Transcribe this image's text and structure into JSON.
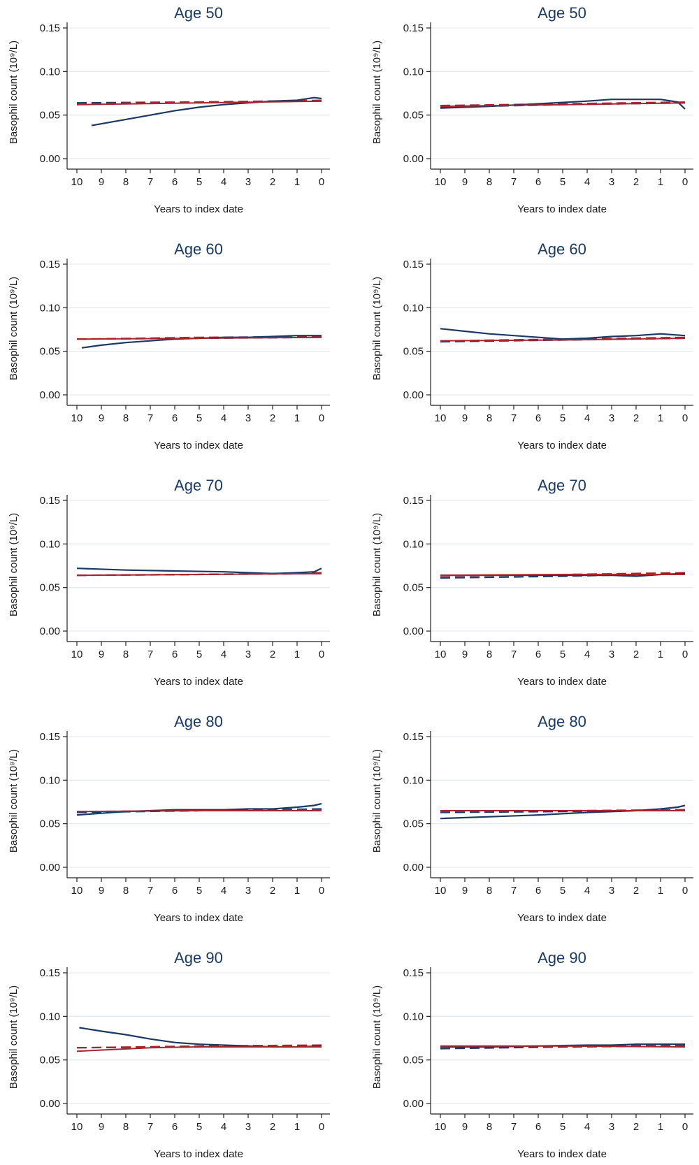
{
  "colors": {
    "navy": "#1a3a63",
    "red": "#a8242f",
    "grid": "#e6eaef",
    "axis": "#222222",
    "text": "#1a1a1a"
  },
  "chart_data": [
    {
      "type": "line",
      "title": "Age 50",
      "xlabel": "Years to index date",
      "ylabel": "Basophil count (10⁹/L)",
      "xlim": [
        10,
        0
      ],
      "ylim": [
        0,
        0.15
      ],
      "x_ticks": [
        10,
        9,
        8,
        7,
        6,
        5,
        4,
        3,
        2,
        1,
        0
      ],
      "y_ticks": [
        "0.00",
        "0.05",
        "0.10",
        "0.15"
      ],
      "grid": true,
      "series": [
        {
          "style": "navy-solid",
          "x": [
            9.4,
            8,
            7,
            6,
            5,
            4,
            3,
            2,
            1,
            0.3,
            0
          ],
          "y": [
            0.038,
            0.045,
            0.05,
            0.055,
            0.059,
            0.062,
            0.064,
            0.066,
            0.067,
            0.07,
            0.069
          ]
        },
        {
          "style": "navy-dashed",
          "x": [
            10,
            5,
            0
          ],
          "y": [
            0.064,
            0.065,
            0.066
          ]
        },
        {
          "style": "red-solid",
          "x": [
            10,
            5,
            0
          ],
          "y": [
            0.062,
            0.064,
            0.066
          ]
        },
        {
          "style": "red-dashed",
          "x": [
            10,
            5,
            0
          ],
          "y": [
            0.063,
            0.065,
            0.067
          ]
        }
      ]
    },
    {
      "type": "line",
      "title": "Age 50",
      "xlabel": "Years to index date",
      "ylabel": "Basophil count (10⁹/L)",
      "xlim": [
        10,
        0
      ],
      "ylim": [
        0,
        0.15
      ],
      "x_ticks": [
        10,
        9,
        8,
        7,
        6,
        5,
        4,
        3,
        2,
        1,
        0
      ],
      "y_ticks": [
        "0.00",
        "0.05",
        "0.10",
        "0.15"
      ],
      "grid": true,
      "series": [
        {
          "style": "navy-solid",
          "x": [
            10,
            8,
            6,
            4,
            3,
            2,
            1,
            0.3,
            0
          ],
          "y": [
            0.058,
            0.06,
            0.063,
            0.066,
            0.068,
            0.068,
            0.068,
            0.065,
            0.057
          ]
        },
        {
          "style": "navy-dashed",
          "x": [
            10,
            5,
            0
          ],
          "y": [
            0.059,
            0.062,
            0.064
          ]
        },
        {
          "style": "red-solid",
          "x": [
            10,
            5,
            0
          ],
          "y": [
            0.06,
            0.062,
            0.064
          ]
        },
        {
          "style": "red-dashed",
          "x": [
            10,
            5,
            0
          ],
          "y": [
            0.061,
            0.063,
            0.065
          ]
        }
      ]
    },
    {
      "type": "line",
      "title": "Age 60",
      "xlabel": "Years to index date",
      "ylabel": "Basophil count (10⁹/L)",
      "xlim": [
        10,
        0
      ],
      "ylim": [
        0,
        0.15
      ],
      "x_ticks": [
        10,
        9,
        8,
        7,
        6,
        5,
        4,
        3,
        2,
        1,
        0
      ],
      "y_ticks": [
        "0.00",
        "0.05",
        "0.10",
        "0.15"
      ],
      "grid": true,
      "series": [
        {
          "style": "navy-solid",
          "x": [
            9.8,
            9,
            8,
            7,
            6,
            5,
            4,
            3,
            2,
            1,
            0
          ],
          "y": [
            0.054,
            0.057,
            0.06,
            0.062,
            0.064,
            0.065,
            0.066,
            0.066,
            0.067,
            0.068,
            0.068
          ]
        },
        {
          "style": "navy-dashed",
          "x": [
            10,
            5,
            0
          ],
          "y": [
            0.064,
            0.065,
            0.066
          ]
        },
        {
          "style": "red-solid",
          "x": [
            10,
            5,
            0
          ],
          "y": [
            0.064,
            0.065,
            0.066
          ]
        },
        {
          "style": "red-dashed",
          "x": [
            10,
            5,
            0
          ],
          "y": [
            0.064,
            0.066,
            0.067
          ]
        }
      ]
    },
    {
      "type": "line",
      "title": "Age 60",
      "xlabel": "Years to index date",
      "ylabel": "Basophil count (10⁹/L)",
      "xlim": [
        10,
        0
      ],
      "ylim": [
        0,
        0.15
      ],
      "x_ticks": [
        10,
        9,
        8,
        7,
        6,
        5,
        4,
        3,
        2,
        1,
        0
      ],
      "y_ticks": [
        "0.00",
        "0.05",
        "0.10",
        "0.15"
      ],
      "grid": true,
      "series": [
        {
          "style": "navy-solid",
          "x": [
            10,
            9,
            8,
            7,
            6,
            5,
            4,
            3,
            2,
            1,
            0
          ],
          "y": [
            0.076,
            0.073,
            0.07,
            0.068,
            0.066,
            0.064,
            0.065,
            0.067,
            0.068,
            0.07,
            0.068
          ]
        },
        {
          "style": "navy-dashed",
          "x": [
            10,
            5,
            0
          ],
          "y": [
            0.061,
            0.063,
            0.065
          ]
        },
        {
          "style": "red-solid",
          "x": [
            10,
            5,
            0
          ],
          "y": [
            0.062,
            0.063,
            0.065
          ]
        },
        {
          "style": "red-dashed",
          "x": [
            10,
            5,
            0
          ],
          "y": [
            0.062,
            0.064,
            0.066
          ]
        }
      ]
    },
    {
      "type": "line",
      "title": "Age 70",
      "xlabel": "Years to index date",
      "ylabel": "Basophil count (10⁹/L)",
      "xlim": [
        10,
        0
      ],
      "ylim": [
        0,
        0.15
      ],
      "x_ticks": [
        10,
        9,
        8,
        7,
        6,
        5,
        4,
        3,
        2,
        1,
        0
      ],
      "y_ticks": [
        "0.00",
        "0.05",
        "0.10",
        "0.15"
      ],
      "grid": true,
      "series": [
        {
          "style": "navy-solid",
          "x": [
            10,
            8,
            6,
            4,
            3,
            2,
            1,
            0.3,
            0
          ],
          "y": [
            0.072,
            0.07,
            0.069,
            0.068,
            0.067,
            0.066,
            0.067,
            0.068,
            0.072
          ]
        },
        {
          "style": "navy-dashed",
          "x": [
            10,
            5,
            0
          ],
          "y": [
            0.064,
            0.065,
            0.066
          ]
        },
        {
          "style": "red-solid",
          "x": [
            10,
            5,
            0
          ],
          "y": [
            0.064,
            0.065,
            0.066
          ]
        },
        {
          "style": "red-dashed",
          "x": [
            10,
            5,
            0
          ],
          "y": [
            0.064,
            0.065,
            0.067
          ]
        }
      ]
    },
    {
      "type": "line",
      "title": "Age 70",
      "xlabel": "Years to index date",
      "ylabel": "Basophil count (10⁹/L)",
      "xlim": [
        10,
        0
      ],
      "ylim": [
        0,
        0.15
      ],
      "x_ticks": [
        10,
        9,
        8,
        7,
        6,
        5,
        4,
        3,
        2,
        1,
        0
      ],
      "y_ticks": [
        "0.00",
        "0.05",
        "0.10",
        "0.15"
      ],
      "grid": true,
      "series": [
        {
          "style": "navy-solid",
          "x": [
            10,
            8,
            6,
            4,
            3,
            2,
            1,
            0
          ],
          "y": [
            0.064,
            0.064,
            0.064,
            0.064,
            0.064,
            0.063,
            0.065,
            0.066
          ]
        },
        {
          "style": "navy-dashed",
          "x": [
            10,
            5,
            0
          ],
          "y": [
            0.061,
            0.063,
            0.066
          ]
        },
        {
          "style": "red-solid",
          "x": [
            10,
            5,
            0
          ],
          "y": [
            0.064,
            0.065,
            0.065
          ]
        },
        {
          "style": "red-dashed",
          "x": [
            10,
            5,
            0
          ],
          "y": [
            0.063,
            0.065,
            0.067
          ]
        }
      ]
    },
    {
      "type": "line",
      "title": "Age 80",
      "xlabel": "Years to index date",
      "ylabel": "Basophil count (10⁹/L)",
      "xlim": [
        10,
        0
      ],
      "ylim": [
        0,
        0.15
      ],
      "x_ticks": [
        10,
        9,
        8,
        7,
        6,
        5,
        4,
        3,
        2,
        1,
        0
      ],
      "y_ticks": [
        "0.00",
        "0.05",
        "0.10",
        "0.15"
      ],
      "grid": true,
      "series": [
        {
          "style": "navy-solid",
          "x": [
            10,
            9,
            8,
            7,
            6,
            5,
            4,
            3,
            2,
            1,
            0.3,
            0
          ],
          "y": [
            0.06,
            0.062,
            0.064,
            0.065,
            0.066,
            0.066,
            0.066,
            0.067,
            0.067,
            0.069,
            0.071,
            0.073
          ]
        },
        {
          "style": "navy-dashed",
          "x": [
            10,
            5,
            0
          ],
          "y": [
            0.063,
            0.065,
            0.067
          ]
        },
        {
          "style": "red-solid",
          "x": [
            10,
            5,
            0
          ],
          "y": [
            0.064,
            0.065,
            0.065
          ]
        },
        {
          "style": "red-dashed",
          "x": [
            10,
            5,
            0
          ],
          "y": [
            0.064,
            0.065,
            0.066
          ]
        }
      ]
    },
    {
      "type": "line",
      "title": "Age 80",
      "xlabel": "Years to index date",
      "ylabel": "Basophil count (10⁹/L)",
      "xlim": [
        10,
        0
      ],
      "ylim": [
        0,
        0.15
      ],
      "x_ticks": [
        10,
        9,
        8,
        7,
        6,
        5,
        4,
        3,
        2,
        1,
        0
      ],
      "y_ticks": [
        "0.00",
        "0.05",
        "0.10",
        "0.15"
      ],
      "grid": true,
      "series": [
        {
          "style": "navy-solid",
          "x": [
            10,
            8,
            6,
            4,
            2,
            1,
            0.3,
            0
          ],
          "y": [
            0.056,
            0.058,
            0.06,
            0.063,
            0.065,
            0.067,
            0.069,
            0.071
          ]
        },
        {
          "style": "navy-dashed",
          "x": [
            10,
            5,
            0
          ],
          "y": [
            0.063,
            0.064,
            0.066
          ]
        },
        {
          "style": "red-solid",
          "x": [
            10,
            5,
            0
          ],
          "y": [
            0.065,
            0.065,
            0.065
          ]
        },
        {
          "style": "red-dashed",
          "x": [
            10,
            5,
            0
          ],
          "y": [
            0.064,
            0.065,
            0.066
          ]
        }
      ]
    },
    {
      "type": "line",
      "title": "Age 90",
      "xlabel": "Years to index date",
      "ylabel": "Basophil count (10⁹/L)",
      "xlim": [
        10,
        0
      ],
      "ylim": [
        0,
        0.15
      ],
      "x_ticks": [
        10,
        9,
        8,
        7,
        6,
        5,
        4,
        3,
        2,
        1,
        0
      ],
      "y_ticks": [
        "0.00",
        "0.05",
        "0.10",
        "0.15"
      ],
      "grid": true,
      "series": [
        {
          "style": "navy-solid",
          "x": [
            9.9,
            9,
            8,
            7,
            6,
            5,
            4,
            3,
            2,
            1,
            0
          ],
          "y": [
            0.087,
            0.083,
            0.079,
            0.074,
            0.07,
            0.068,
            0.067,
            0.066,
            0.065,
            0.065,
            0.066
          ]
        },
        {
          "style": "navy-dashed",
          "x": [
            10,
            5,
            0
          ],
          "y": [
            0.064,
            0.065,
            0.067
          ]
        },
        {
          "style": "red-solid",
          "x": [
            10,
            7,
            5,
            0
          ],
          "y": [
            0.06,
            0.064,
            0.065,
            0.065
          ]
        },
        {
          "style": "red-dashed",
          "x": [
            10,
            5,
            0
          ],
          "y": [
            0.064,
            0.066,
            0.067
          ]
        }
      ]
    },
    {
      "type": "line",
      "title": "Age 90",
      "xlabel": "Years to index date",
      "ylabel": "Basophil count (10⁹/L)",
      "xlim": [
        10,
        0
      ],
      "ylim": [
        0,
        0.15
      ],
      "x_ticks": [
        10,
        9,
        8,
        7,
        6,
        5,
        4,
        3,
        2,
        1,
        0
      ],
      "y_ticks": [
        "0.00",
        "0.05",
        "0.10",
        "0.15"
      ],
      "grid": true,
      "series": [
        {
          "style": "navy-solid",
          "x": [
            10,
            8,
            6,
            4,
            3,
            2,
            1,
            0
          ],
          "y": [
            0.065,
            0.065,
            0.066,
            0.067,
            0.067,
            0.068,
            0.068,
            0.068
          ]
        },
        {
          "style": "navy-dashed",
          "x": [
            10,
            5,
            0
          ],
          "y": [
            0.063,
            0.065,
            0.066
          ]
        },
        {
          "style": "red-solid",
          "x": [
            10,
            5,
            0
          ],
          "y": [
            0.066,
            0.066,
            0.065
          ]
        },
        {
          "style": "red-dashed",
          "x": [
            10,
            5,
            0
          ],
          "y": [
            0.065,
            0.066,
            0.067
          ]
        }
      ]
    }
  ]
}
